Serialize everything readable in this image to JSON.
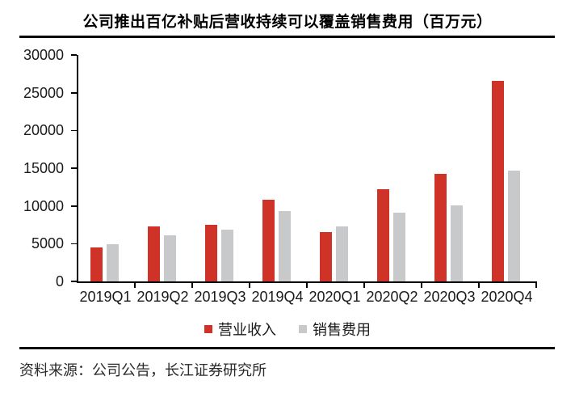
{
  "page": {
    "source_note": "资料来源：公司公告，长江证券研究所"
  },
  "chart_data": {
    "type": "bar",
    "title": "公司推出百亿补贴后营收持续可以覆盖销售费用（百万元）",
    "unit": "百万元",
    "categories": [
      "2019Q1",
      "2019Q2",
      "2019Q3",
      "2019Q4",
      "2020Q1",
      "2020Q2",
      "2020Q3",
      "2020Q4"
    ],
    "series": [
      {
        "name": "营业收入",
        "color": "#CF3227",
        "values": [
          4545,
          7290,
          7514,
          10793,
          6541,
          12193,
          14210,
          26548
        ]
      },
      {
        "name": "销售费用",
        "color": "#C8C9CA",
        "values": [
          4889,
          6104,
          6909,
          9273,
          7297,
          9114,
          10072,
          14693
        ]
      }
    ],
    "xlabel": "",
    "ylabel": "",
    "ylim": [
      0,
      30000
    ],
    "ytick_interval": 5000,
    "yticks": [
      0,
      5000,
      10000,
      15000,
      20000,
      25000,
      30000
    ],
    "grid": false,
    "legend_position": "bottom",
    "axis_color": "#000000",
    "text_color": "#1a1a1a"
  }
}
